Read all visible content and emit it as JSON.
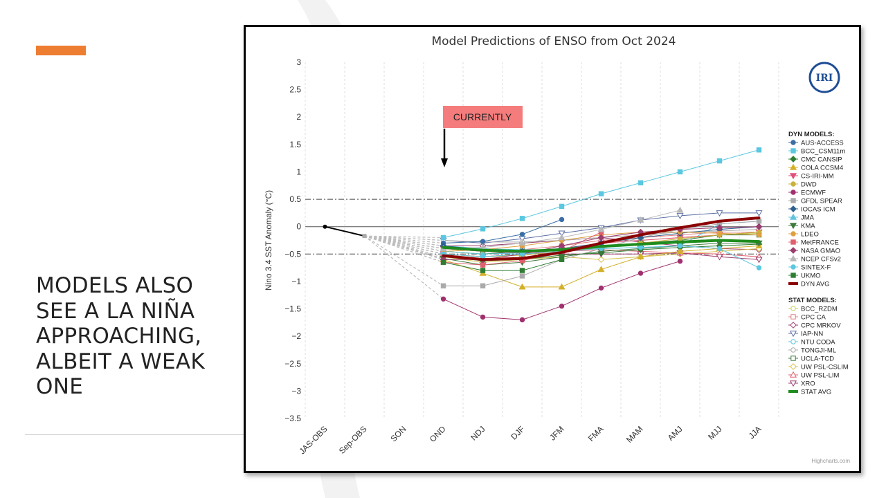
{
  "slide": {
    "text_lines": [
      "MODELS ALSO",
      "SEE A LA NIÑA",
      "APPROACHING,",
      "ALBEIT A WEAK",
      "ONE"
    ],
    "accent_color": "#ed7d31"
  },
  "chart_data": {
    "type": "line",
    "title": "Model Predictions of ENSO from Oct 2024",
    "xlabel": "",
    "ylabel": "Nino 3.4 SST Anomaly (°C)",
    "ylim": [
      -3.5,
      3
    ],
    "yticks": [
      "3",
      "2.5",
      "2",
      "1.5",
      "1",
      "0.5",
      "0",
      "−0.5",
      "−1",
      "−1.5",
      "−2",
      "−2.5",
      "−3",
      "−3.5"
    ],
    "categories": [
      "JAS-OBS",
      "Sep-OBS",
      "SON",
      "OND",
      "NDJ",
      "DJF",
      "JFM",
      "FMA",
      "MAM",
      "AMJ",
      "MJJ",
      "JJA"
    ],
    "reference_lines": [
      0.5,
      -0.5
    ],
    "grid": "vertical-dashed",
    "annotation": "CURRENTLY",
    "logo_text": "IRI",
    "credit": "Highcharts.com",
    "legend": {
      "position": "right",
      "dyn_header": "DYN MODELS:",
      "stat_header": "STAT MODELS:"
    },
    "observed": {
      "values": [
        0.0,
        -0.17
      ],
      "color": "#000000"
    },
    "dyn_models": [
      {
        "name": "AUS-ACCESS",
        "color": "#3a6ea5",
        "marker": "circle",
        "values": [
          null,
          null,
          null,
          -0.3,
          -0.27,
          -0.14,
          0.13,
          null,
          null,
          null,
          null,
          null
        ]
      },
      {
        "name": "BCC_CSM11m",
        "color": "#5bc7e0",
        "marker": "square",
        "values": [
          null,
          null,
          null,
          -0.2,
          -0.04,
          0.15,
          0.37,
          0.6,
          0.8,
          1.0,
          1.2,
          1.4
        ]
      },
      {
        "name": "CMC CANSIP",
        "color": "#2e7d32",
        "marker": "diamond",
        "values": [
          null,
          null,
          null,
          -0.55,
          -0.62,
          -0.6,
          -0.52,
          -0.48,
          -0.42,
          -0.38,
          -0.35,
          -0.32
        ]
      },
      {
        "name": "COLA CCSM4",
        "color": "#d4b02a",
        "marker": "triangle",
        "values": [
          null,
          null,
          null,
          -0.6,
          -0.85,
          -1.1,
          -1.1,
          -0.78,
          -0.55,
          -0.45,
          -0.4,
          -0.35
        ]
      },
      {
        "name": "CS-IRI-MM",
        "color": "#e0507a",
        "marker": "triangle-down",
        "values": [
          null,
          null,
          null,
          -0.5,
          -0.55,
          -0.5,
          -0.42,
          -0.3,
          -0.25,
          -0.2,
          -0.15,
          -0.1
        ]
      },
      {
        "name": "DWD",
        "color": "#c9b23c",
        "marker": "circle",
        "values": [
          null,
          null,
          null,
          -0.5,
          -0.55,
          -0.52,
          -0.45,
          -0.38,
          -0.3,
          -0.22,
          -0.15,
          -0.1
        ]
      },
      {
        "name": "ECMWF",
        "color": "#a0306e",
        "marker": "circle",
        "values": [
          null,
          null,
          null,
          -1.32,
          -1.65,
          -1.7,
          -1.45,
          -1.12,
          -0.85,
          -0.63,
          null,
          null
        ]
      },
      {
        "name": "GFDL SPEAR",
        "color": "#aaaaaa",
        "marker": "square",
        "values": [
          null,
          null,
          null,
          -1.08,
          -1.08,
          -0.9,
          -0.6,
          -0.4,
          -0.2,
          -0.05,
          0.05,
          0.1
        ]
      },
      {
        "name": "IOCAS ICM",
        "color": "#2f5f8f",
        "marker": "diamond",
        "values": [
          null,
          null,
          null,
          -0.35,
          -0.42,
          -0.45,
          -0.4,
          -0.3,
          -0.2,
          -0.12,
          -0.05,
          0.0
        ]
      },
      {
        "name": "JMA",
        "color": "#63c2de",
        "marker": "triangle",
        "values": [
          null,
          null,
          null,
          -0.45,
          -0.5,
          -0.48,
          -0.4,
          null,
          null,
          null,
          null,
          null
        ]
      },
      {
        "name": "KMA",
        "color": "#3c7a3c",
        "marker": "triangle-down",
        "values": [
          null,
          null,
          null,
          -0.58,
          -0.7,
          -0.65,
          -0.55,
          -0.45,
          -0.4,
          -0.35,
          -0.3,
          -0.3
        ]
      },
      {
        "name": "LDEO",
        "color": "#e0a040",
        "marker": "circle",
        "values": [
          null,
          null,
          null,
          -0.45,
          -0.42,
          -0.35,
          -0.25,
          -0.15,
          -0.1,
          -0.1,
          -0.12,
          -0.15
        ]
      },
      {
        "name": "MetFRANCE",
        "color": "#e06070",
        "marker": "square",
        "values": [
          null,
          null,
          null,
          -0.65,
          -0.7,
          -0.62,
          -0.45,
          -0.1,
          null,
          null,
          null,
          null
        ]
      },
      {
        "name": "NASA GMAO",
        "color": "#9c3d6e",
        "marker": "diamond",
        "values": [
          null,
          null,
          null,
          -0.6,
          -0.6,
          -0.5,
          -0.35,
          -0.2,
          -0.1,
          -0.05,
          -0.02,
          0.0
        ]
      },
      {
        "name": "NCEP CFSv2",
        "color": "#b8b8b8",
        "marker": "triangle",
        "values": [
          null,
          null,
          null,
          -0.4,
          -0.38,
          -0.3,
          -0.2,
          -0.05,
          0.12,
          0.3,
          null,
          null
        ]
      },
      {
        "name": "SINTEX-F",
        "color": "#5bc7e0",
        "marker": "circle",
        "values": [
          null,
          null,
          null,
          -0.5,
          -0.55,
          -0.5,
          -0.45,
          -0.4,
          -0.38,
          -0.35,
          -0.4,
          -0.75
        ]
      },
      {
        "name": "UKMO",
        "color": "#2e7d32",
        "marker": "square",
        "values": [
          null,
          null,
          null,
          -0.65,
          -0.8,
          -0.8,
          -0.6,
          null,
          null,
          null,
          null,
          null
        ]
      }
    ],
    "dyn_avg": {
      "name": "DYN AVG",
      "color": "#8b0000",
      "values": [
        null,
        null,
        null,
        -0.53,
        -0.6,
        -0.58,
        -0.47,
        -0.3,
        -0.15,
        -0.02,
        0.1,
        0.16
      ]
    },
    "stat_models": [
      {
        "name": "BCC_RZDM",
        "color": "#c8d25a",
        "marker": "circle-open",
        "values": [
          null,
          null,
          null,
          -0.45,
          -0.5,
          -0.45,
          -0.4,
          -0.3,
          -0.25,
          -0.2,
          -0.15,
          -0.12
        ]
      },
      {
        "name": "CPC CA",
        "color": "#e08080",
        "marker": "square-open",
        "values": [
          null,
          null,
          null,
          -0.4,
          -0.45,
          -0.42,
          -0.35,
          -0.25,
          -0.2,
          -0.15,
          -0.1,
          -0.1
        ]
      },
      {
        "name": "CPC MRKOV",
        "color": "#9c3d6e",
        "marker": "diamond-open",
        "values": [
          null,
          null,
          null,
          -0.35,
          -0.35,
          -0.3,
          -0.25,
          -0.2,
          -0.28,
          -0.35,
          -0.4,
          -0.42
        ]
      },
      {
        "name": "IAP-NN",
        "color": "#5a6ea5",
        "marker": "triangle-down-open",
        "values": [
          null,
          null,
          null,
          -0.25,
          -0.3,
          -0.22,
          -0.12,
          -0.02,
          0.12,
          0.2,
          0.25,
          0.25
        ]
      },
      {
        "name": "NTU CODA",
        "color": "#5bc7e0",
        "marker": "circle-open",
        "values": [
          null,
          null,
          null,
          -0.35,
          -0.4,
          -0.42,
          -0.42,
          -0.4,
          -0.38,
          -0.35,
          0.05,
          0.1
        ]
      },
      {
        "name": "TONGJI-ML",
        "color": "#aaaaaa",
        "marker": "circle-open",
        "values": [
          null,
          null,
          null,
          -0.25,
          -0.28,
          -0.28,
          -0.25,
          -0.2,
          -0.15,
          -0.1,
          -0.08,
          -0.05
        ]
      },
      {
        "name": "UCLA-TCD",
        "color": "#3c7a3c",
        "marker": "square-open",
        "values": [
          null,
          null,
          null,
          -0.45,
          -0.5,
          -0.45,
          -0.4,
          -0.35,
          -0.3,
          -0.25,
          -0.15,
          -0.15
        ]
      },
      {
        "name": "UW PSL-CSLIM",
        "color": "#d4c050",
        "marker": "diamond-open",
        "values": [
          null,
          null,
          null,
          -0.55,
          -0.65,
          -0.6,
          -0.55,
          -0.6,
          -0.55,
          -0.5,
          -0.45,
          -0.4
        ]
      },
      {
        "name": "UW PSL-LIM",
        "color": "#e06070",
        "marker": "triangle-open",
        "values": [
          null,
          null,
          null,
          -0.5,
          -0.55,
          -0.5,
          -0.45,
          -0.42,
          -0.45,
          -0.48,
          -0.5,
          -0.55
        ]
      },
      {
        "name": "XRO",
        "color": "#9c3d6e",
        "marker": "triangle-down-open",
        "values": [
          null,
          null,
          null,
          -0.4,
          -0.45,
          -0.48,
          -0.5,
          -0.5,
          -0.5,
          -0.48,
          -0.55,
          -0.6
        ]
      }
    ],
    "stat_avg": {
      "name": "STAT AVG",
      "color": "#1e8c1e",
      "values": [
        null,
        null,
        null,
        -0.38,
        -0.43,
        -0.45,
        -0.42,
        -0.36,
        -0.32,
        -0.28,
        -0.25,
        -0.27
      ]
    }
  }
}
